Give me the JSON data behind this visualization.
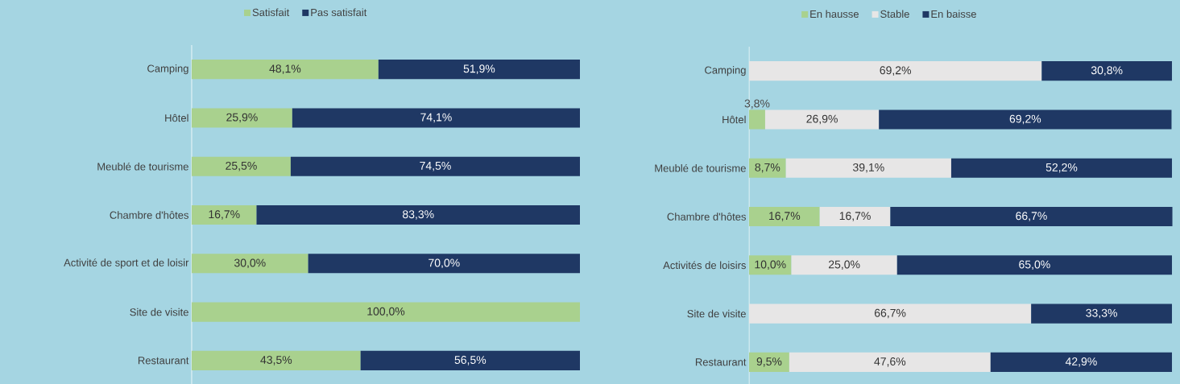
{
  "chart_data": [
    {
      "type": "bar",
      "orientation": "horizontal",
      "stacked": true,
      "legend": "top",
      "tick_labels": "y",
      "xlim": [
        0,
        100
      ],
      "categories": [
        "Camping",
        "Hôtel",
        "Meublé de tourisme",
        "Chambre d'hôtes",
        "Activité de sport et de loisir",
        "Site de visite",
        "Restaurant"
      ],
      "series": [
        {
          "name": "Satisfait",
          "color": "#a9d18e",
          "values": [
            48.1,
            25.9,
            25.5,
            16.7,
            30.0,
            100.0,
            43.5
          ],
          "value_labels": [
            "48,1%",
            "25,9%",
            "25,5%",
            "16,7%",
            "30,0%",
            "100,0%",
            "43,5%"
          ]
        },
        {
          "name": "Pas satisfait",
          "color": "#1f3864",
          "values": [
            51.9,
            74.1,
            74.5,
            83.3,
            70.0,
            null,
            56.5
          ],
          "value_labels": [
            "51,9%",
            "74,1%",
            "74,5%",
            "83,3%",
            "70,0%",
            null,
            "56,5%"
          ]
        }
      ]
    },
    {
      "type": "bar",
      "orientation": "horizontal",
      "stacked": true,
      "legend": "top",
      "tick_labels": "y",
      "xlim": [
        0,
        100
      ],
      "categories": [
        "Camping",
        "Hôtel",
        "Meublé de tourisme",
        "Chambre d'hôtes",
        "Activités de loisirs",
        "Site de visite",
        "Restaurant"
      ],
      "series": [
        {
          "name": "En hausse",
          "color": "#a9d18e",
          "values": [
            null,
            3.8,
            8.7,
            16.7,
            10.0,
            null,
            9.5
          ],
          "value_labels": [
            null,
            "3,8%",
            "8,7%",
            "16,7%",
            "10,0%",
            null,
            "9,5%"
          ]
        },
        {
          "name": "Stable",
          "color": "#e7e6e6",
          "values": [
            69.2,
            26.9,
            39.1,
            16.7,
            25.0,
            66.7,
            47.6
          ],
          "value_labels": [
            "69,2%",
            "26,9%",
            "39,1%",
            "16,7%",
            "25,0%",
            "66,7%",
            "47,6%"
          ]
        },
        {
          "name": "En baisse",
          "color": "#1f3864",
          "values": [
            30.8,
            69.2,
            52.2,
            66.7,
            65.0,
            33.3,
            42.9
          ],
          "value_labels": [
            "30,8%",
            "69,2%",
            "52,2%",
            "66,7%",
            "65,0%",
            "33,3%",
            "42,9%"
          ]
        }
      ]
    }
  ]
}
